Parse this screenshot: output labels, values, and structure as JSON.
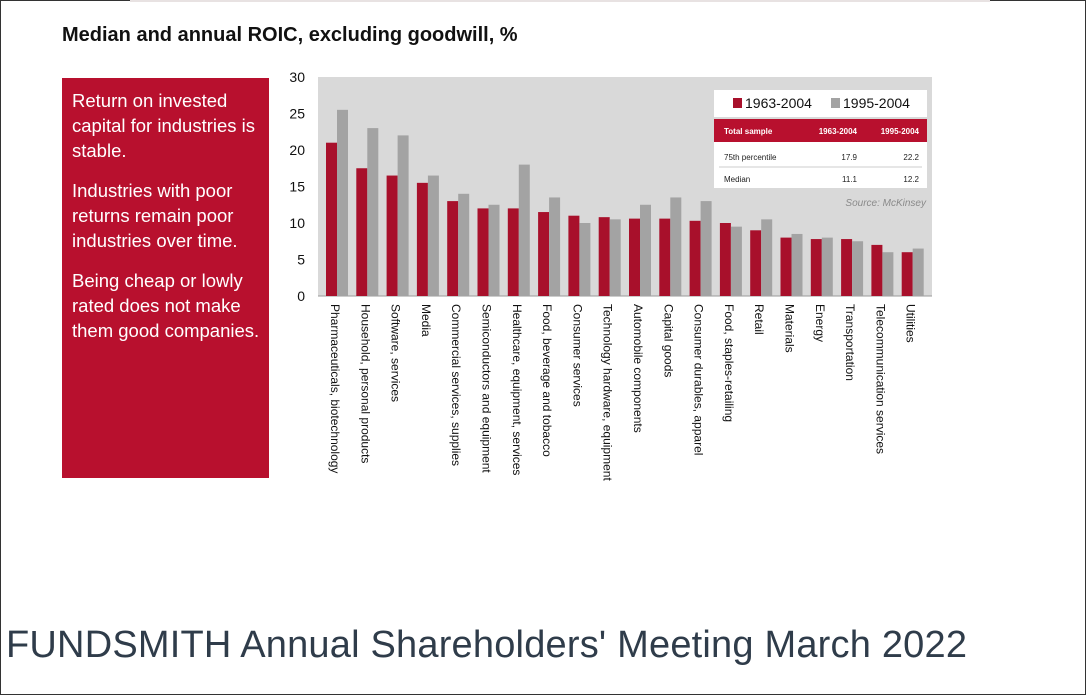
{
  "page": {
    "footer_title": "FUNDSMITH Annual Shareholders' Meeting March 2022"
  },
  "side_panel": {
    "points": [
      "Return on invested capital for industries is stable.",
      "Industries with poor returns remain poor industries over time.",
      "Being cheap or lowly rated does not make them good companies."
    ]
  },
  "colors": {
    "accent_red": "#b8102e",
    "bar_red": "#a8102b",
    "bar_gray": "#a3a3a3",
    "plot_background": "#d9d9d9"
  },
  "chart_data": {
    "type": "bar",
    "title": "Median and annual ROIC, excluding goodwill, %",
    "ylim": [
      0,
      30
    ],
    "yticks": [
      0,
      5,
      10,
      15,
      20,
      25,
      30
    ],
    "grid": false,
    "legend_position": "top-right",
    "categories": [
      "Pharmaceuticals, biotechnology",
      "Household, personal products",
      "Software, services",
      "Media",
      "Commercial services, supplies",
      "Semiconductors and equipment",
      "Healthcare, equipment, services",
      "Food, beverage and tobacco",
      "Consumer services",
      "Technology hardware, equipment",
      "Automobile components",
      "Capital goods",
      "Consumer durables, apparel",
      "Food, staples-retailing",
      "Retail",
      "Materials",
      "Energy",
      "Transportation",
      "Telecommunication services",
      "Utilities"
    ],
    "series": [
      {
        "name": "1963-2004",
        "color": "#a8102b",
        "values": [
          21,
          17.5,
          16.5,
          15.5,
          13,
          12,
          12,
          11.5,
          11,
          10.8,
          10.6,
          10.6,
          10.3,
          10,
          9,
          8,
          7.8,
          7.8,
          7,
          6
        ]
      },
      {
        "name": "1995-2004",
        "color": "#a3a3a3",
        "values": [
          25.5,
          23,
          22,
          16.5,
          14,
          12.5,
          18,
          13.5,
          10,
          10.5,
          12.5,
          13.5,
          13,
          9.5,
          10.5,
          8.5,
          8,
          7.5,
          6,
          6.5
        ]
      }
    ],
    "inset_table": {
      "headers": [
        "Total sample",
        "1963-2004",
        "1995-2004"
      ],
      "rows": [
        [
          "75th percentile",
          "17.9",
          "22.2"
        ],
        [
          "Median",
          "11.1",
          "12.2"
        ]
      ]
    },
    "source_note": "Source: McKinsey"
  }
}
